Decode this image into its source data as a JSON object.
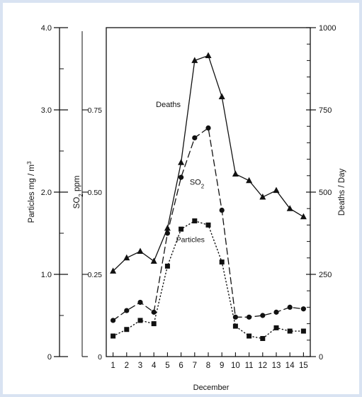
{
  "chart_data": {
    "type": "line",
    "x": [
      1,
      2,
      3,
      4,
      5,
      6,
      7,
      8,
      9,
      10,
      11,
      12,
      13,
      14,
      15
    ],
    "xlabel": "December",
    "xlim": [
      0.5,
      15.5
    ],
    "axes": {
      "particles": {
        "label": "Particles mg / m",
        "label_superscript": "3",
        "ylim": [
          0,
          4.0
        ],
        "ticks": [
          "0",
          "1.0",
          "2.0",
          "3.0",
          "4.0"
        ],
        "tick_values": [
          0,
          1.0,
          2.0,
          3.0,
          4.0
        ]
      },
      "so2": {
        "label": "SO",
        "label_subscript": "2",
        "label_suffix": " ppm",
        "ylim": [
          0,
          1.0
        ],
        "ticks": [
          "0",
          "0.25",
          "0.50",
          "0.75"
        ],
        "tick_values": [
          0,
          0.25,
          0.5,
          0.75
        ]
      },
      "deaths": {
        "label": "Deaths / Day",
        "ylim": [
          0,
          1000
        ],
        "ticks": [
          "0",
          "250",
          "500",
          "750",
          "1000"
        ],
        "tick_values": [
          0,
          250,
          500,
          750,
          1000
        ]
      }
    },
    "series": [
      {
        "name": "Deaths",
        "axis": "deaths",
        "marker": "triangle",
        "style": "solid",
        "values": [
          260,
          300,
          320,
          290,
          390,
          590,
          900,
          915,
          790,
          555,
          535,
          485,
          505,
          450,
          425
        ]
      },
      {
        "name": "SO",
        "name_subscript": "2",
        "axis": "so2",
        "marker": "circle",
        "style": "dashed",
        "values": [
          0.11,
          0.14,
          0.165,
          0.135,
          0.375,
          0.545,
          0.665,
          0.695,
          0.445,
          0.12,
          0.12,
          0.125,
          0.135,
          0.15,
          0.145
        ]
      },
      {
        "name": "Particles",
        "axis": "particles",
        "marker": "square",
        "style": "dotted",
        "values": [
          0.25,
          0.33,
          0.44,
          0.4,
          1.1,
          1.55,
          1.65,
          1.6,
          1.15,
          0.37,
          0.25,
          0.22,
          0.35,
          0.31,
          0.31
        ]
      }
    ],
    "legend": "inline labels",
    "grid": false
  }
}
